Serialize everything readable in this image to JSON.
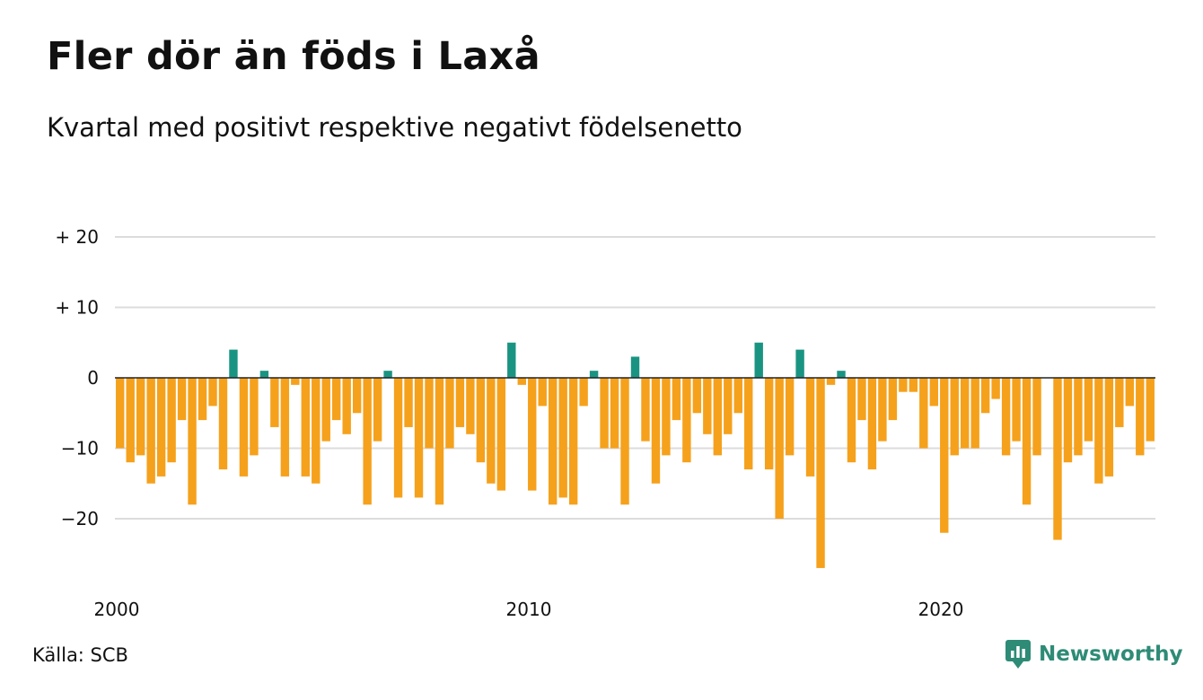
{
  "header": {
    "title": "Fler dör än föds i Laxå",
    "subtitle": "Kvartal med positivt respektive negativt födelsenetto"
  },
  "footer": {
    "source": "Källa: SCB",
    "brand": "Newsworthy"
  },
  "colors": {
    "positive": "#1a9482",
    "negative": "#f5a11c",
    "grid": "#dcdcdc",
    "zero_line": "#222222",
    "brand": "#2e8b76"
  },
  "icons": [
    "newsworthy-logo-icon"
  ],
  "chart_data": {
    "type": "bar",
    "x_start_year": 2000,
    "periods_per_year": 4,
    "ylim": [
      -29,
      22
    ],
    "y_ticks": [
      {
        "value": 20,
        "label": "+ 20"
      },
      {
        "value": 10,
        "label": "+ 10"
      },
      {
        "value": 0,
        "label": "0"
      },
      {
        "value": -10,
        "label": "−10"
      },
      {
        "value": -20,
        "label": "−20"
      }
    ],
    "x_ticks": [
      {
        "value": 2000,
        "label": "2000"
      },
      {
        "value": 2010,
        "label": "2010"
      },
      {
        "value": 2020,
        "label": "2020"
      }
    ],
    "grid": true,
    "values": [
      -10,
      -12,
      -11,
      -15,
      -14,
      -12,
      -6,
      -18,
      -6,
      -4,
      -13,
      4,
      -14,
      -11,
      1,
      -7,
      -14,
      -1,
      -14,
      -15,
      -9,
      -6,
      -8,
      -5,
      -18,
      -9,
      1,
      -17,
      -7,
      -17,
      -10,
      -18,
      -10,
      -7,
      -8,
      -12,
      -15,
      -16,
      5,
      -1,
      -16,
      -4,
      -18,
      -17,
      -18,
      -4,
      1,
      -10,
      -10,
      -18,
      3,
      -9,
      -15,
      -11,
      -6,
      -12,
      -5,
      -8,
      -11,
      -8,
      -5,
      -13,
      5,
      -13,
      -20,
      -11,
      4,
      -14,
      -27,
      -1,
      1,
      -12,
      -6,
      -13,
      -9,
      -6,
      -2,
      -2,
      -10,
      -4,
      -22,
      -11,
      -10,
      -10,
      -5,
      -3,
      -11,
      -9,
      -18,
      -11,
      0,
      -23,
      -12,
      -11,
      -9,
      -15,
      -14,
      -7,
      -4,
      -11,
      -9
    ]
  }
}
